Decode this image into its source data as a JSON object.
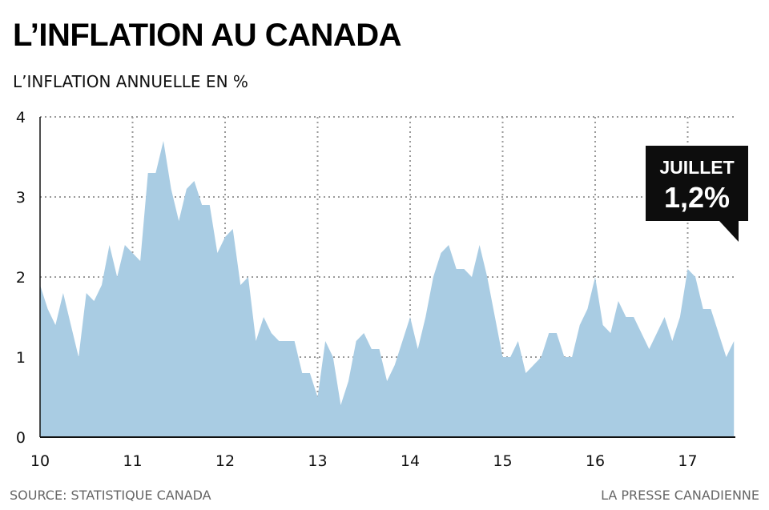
{
  "colors": {
    "area": "#a9cce3",
    "grid": "#9a9a9a",
    "axis": "#111111",
    "callout_bg": "#0d0d0d",
    "callout_text": "#ffffff"
  },
  "footer": {
    "source": "SOURCE: STATISTIQUE CANADA",
    "credit": "LA PRESSE CANADIENNE"
  },
  "chart_data": {
    "type": "area",
    "title": "L’INFLATION AU CANADA",
    "ylabel": "L’INFLATION ANNUELLE EN %",
    "xlabel": "",
    "x_ticks": [
      "10",
      "11",
      "12",
      "13",
      "14",
      "15",
      "16",
      "17"
    ],
    "y_ticks": [
      "0",
      "1",
      "2",
      "3",
      "4"
    ],
    "ylim": [
      0,
      4
    ],
    "grid": true,
    "annotation": {
      "label": "JUILLET",
      "value": "1,2%"
    },
    "series": [
      {
        "name": "Inflation annuelle (%)",
        "start": "2010-01",
        "end": "2017-07",
        "values": [
          1.9,
          1.6,
          1.4,
          1.8,
          1.4,
          1.0,
          1.8,
          1.7,
          1.9,
          2.4,
          2.0,
          2.4,
          2.3,
          2.2,
          3.3,
          3.3,
          3.7,
          3.1,
          2.7,
          3.1,
          3.2,
          2.9,
          2.9,
          2.3,
          2.5,
          2.6,
          1.9,
          2.0,
          1.2,
          1.5,
          1.3,
          1.2,
          1.2,
          1.2,
          0.8,
          0.8,
          0.5,
          1.2,
          1.0,
          0.4,
          0.7,
          1.2,
          1.3,
          1.1,
          1.1,
          0.7,
          0.9,
          1.2,
          1.5,
          1.1,
          1.5,
          2.0,
          2.3,
          2.4,
          2.1,
          2.1,
          2.0,
          2.4,
          2.0,
          1.5,
          1.0,
          1.0,
          1.2,
          0.8,
          0.9,
          1.0,
          1.3,
          1.3,
          1.0,
          1.0,
          1.4,
          1.6,
          2.0,
          1.4,
          1.3,
          1.7,
          1.5,
          1.5,
          1.3,
          1.1,
          1.3,
          1.5,
          1.2,
          1.5,
          2.1,
          2.0,
          1.6,
          1.6,
          1.3,
          1.0,
          1.2
        ]
      }
    ]
  }
}
